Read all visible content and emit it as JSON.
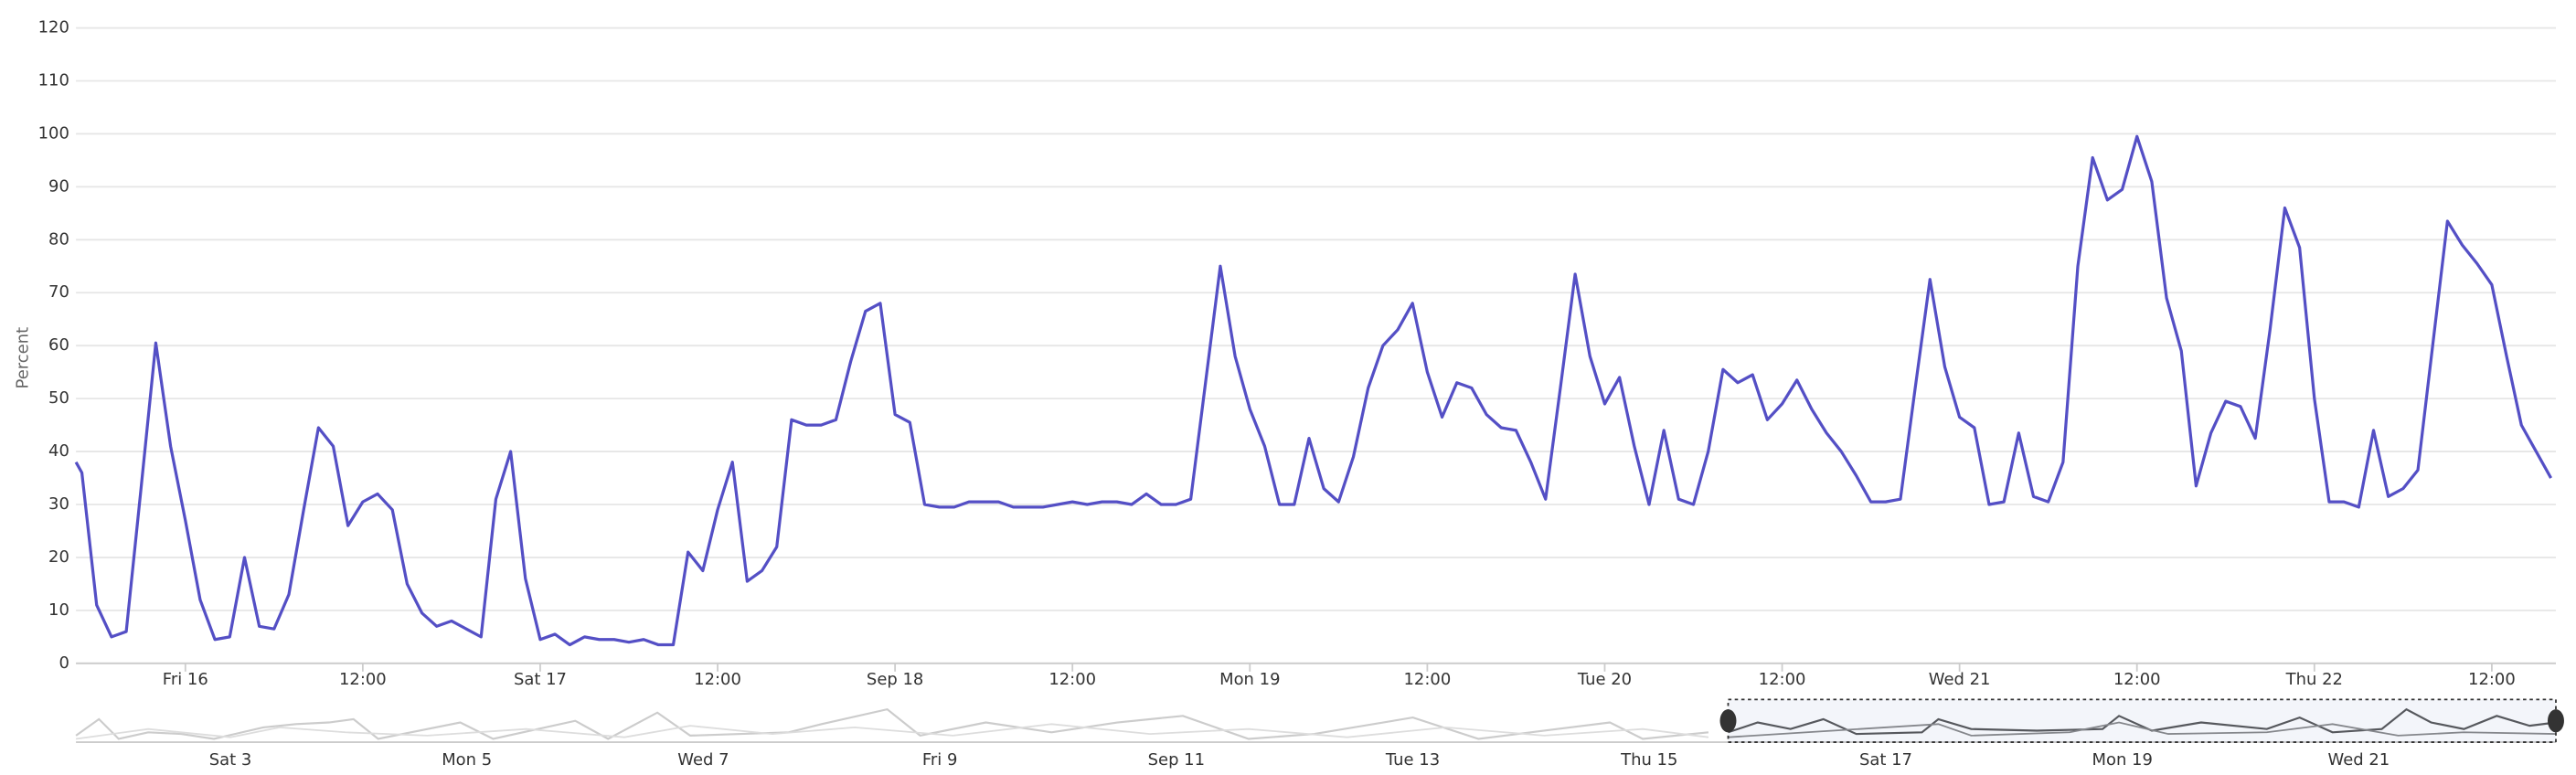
{
  "chart_data": {
    "type": "line",
    "y_label": "Percent",
    "color": "#544fc5",
    "grid": true,
    "ylim": [
      0,
      120
    ],
    "yticks": [
      0,
      10,
      20,
      30,
      40,
      50,
      60,
      70,
      80,
      90,
      100,
      110,
      120
    ],
    "xlim": [
      -7.4,
      160
    ],
    "xticks": [
      {
        "value": 0,
        "label": "Fri 16"
      },
      {
        "value": 12,
        "label": "12:00"
      },
      {
        "value": 24,
        "label": "Sat 17"
      },
      {
        "value": 36,
        "label": "12:00"
      },
      {
        "value": 48,
        "label": "Sep 18"
      },
      {
        "value": 60,
        "label": "12:00"
      },
      {
        "value": 72,
        "label": "Mon 19"
      },
      {
        "value": 84,
        "label": "12:00"
      },
      {
        "value": 96,
        "label": "Tue 20"
      },
      {
        "value": 108,
        "label": "12:00"
      },
      {
        "value": 120,
        "label": "Wed 21"
      },
      {
        "value": 132,
        "label": "12:00"
      },
      {
        "value": 144,
        "label": "Thu 22"
      },
      {
        "value": 156,
        "label": "12:00"
      }
    ],
    "x": [
      -7.4,
      -7,
      -6,
      -5,
      -4,
      -3,
      -2,
      -1,
      0,
      1,
      2,
      3,
      4,
      5,
      6,
      7,
      8,
      9,
      10,
      11,
      12,
      13,
      14,
      15,
      16,
      17,
      18,
      19,
      20,
      21,
      22,
      23,
      24,
      25,
      26,
      27,
      28,
      29,
      30,
      31,
      32,
      33,
      34,
      35,
      36,
      37,
      38,
      39,
      40,
      41,
      42,
      43,
      44,
      45,
      46,
      47,
      48,
      49,
      50,
      51,
      52,
      53,
      54,
      55,
      56,
      57,
      58,
      59,
      60,
      61,
      62,
      63,
      64,
      65,
      66,
      67,
      68,
      69,
      70,
      71,
      72,
      73,
      74,
      75,
      76,
      77,
      78,
      79,
      80,
      81,
      82,
      83,
      84,
      85,
      86,
      87,
      88,
      89,
      90,
      91,
      92,
      93,
      94,
      95,
      96,
      97,
      98,
      99,
      100,
      101,
      102,
      103,
      104,
      105,
      106,
      107,
      108,
      109,
      110,
      111,
      112,
      113,
      114,
      115,
      116,
      117,
      118,
      119,
      120,
      121,
      122,
      123,
      124,
      125,
      126,
      127,
      128,
      129,
      130,
      131,
      132,
      133,
      134,
      135,
      136,
      137,
      138,
      139,
      140,
      141,
      142,
      143,
      144,
      145,
      146,
      147,
      148,
      149,
      150,
      151,
      152,
      153,
      154,
      155,
      156,
      157,
      158,
      159,
      160
    ],
    "values": [
      38,
      36,
      11,
      5,
      6,
      33,
      60.5,
      41,
      27,
      12,
      4.5,
      5,
      20,
      7,
      6.5,
      13,
      29,
      44.5,
      41,
      26,
      30.5,
      32,
      29,
      15,
      9.5,
      7,
      8,
      6.5,
      5,
      31,
      40,
      16,
      4.5,
      5.5,
      3.5,
      5,
      4.5,
      4.5,
      4,
      4.5,
      3.5,
      3.5,
      21,
      17.5,
      29,
      38,
      15.5,
      17.5,
      22,
      46,
      45,
      45,
      46,
      57,
      66.5,
      68,
      47,
      45.5,
      30,
      29.5,
      29.5,
      30.5,
      30.5,
      30.5,
      29.5,
      29.5,
      29.5,
      30,
      30.5,
      30,
      30.5,
      30.5,
      30,
      32,
      30,
      30,
      31,
      53,
      75,
      58,
      48,
      41,
      30,
      30,
      42.5,
      33,
      30.5,
      39,
      52,
      60,
      63,
      68,
      55,
      46.5,
      53,
      52,
      47,
      44.5,
      44,
      38,
      31,
      52,
      73.5,
      58,
      49,
      54,
      41,
      30,
      44,
      31,
      30,
      40,
      55.5,
      53,
      54.5,
      46,
      49,
      53.5,
      48,
      43.5,
      40,
      35.5,
      30.5,
      30.5,
      31,
      52,
      72.5,
      56,
      46.5,
      44.5,
      30,
      30.5,
      43.5,
      31.5,
      30.5,
      38,
      75,
      95.5,
      87.5,
      89.5,
      99.5,
      91,
      69,
      59,
      33.5,
      43.5,
      49.5,
      48.5,
      42.5,
      63,
      86,
      78.5,
      50,
      30.5,
      30.5,
      29.5,
      44,
      31.5,
      33,
      36.5,
      60,
      83.5,
      79,
      75.5,
      71.5,
      58,
      45,
      40,
      35
    ],
    "navigator_labels": [
      "Sat 3",
      "Mon 5",
      "Wed 7",
      "Fri 9",
      "Sep 11",
      "Tue 13",
      "Thu 15",
      "Sat 17",
      "Mon 19",
      "Wed 21"
    ]
  }
}
